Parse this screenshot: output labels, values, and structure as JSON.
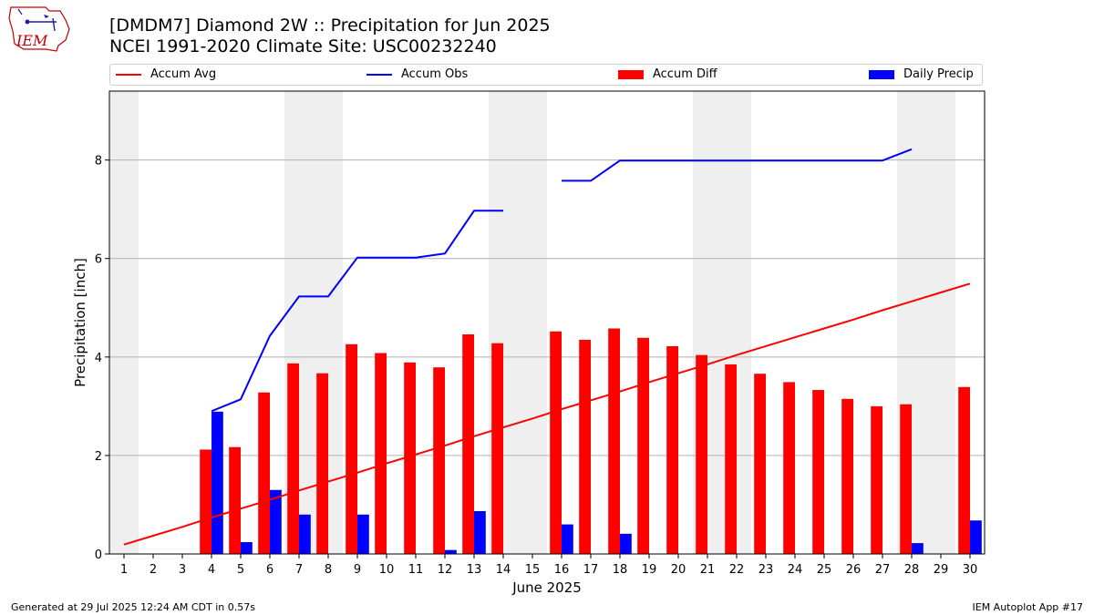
{
  "header": {
    "title_line1": "[DMDM7] Diamond 2W :: Precipitation for Jun 2025",
    "title_line2": "NCEI 1991-2020 Climate Site: USC00232240",
    "logo_text": "IEM"
  },
  "footer": {
    "left": "Generated at 29 Jul 2025 12:24 AM CDT in 0.57s",
    "right": "IEM Autoplot App #17"
  },
  "colors": {
    "avg": "#ff0000",
    "obs": "#0000ff",
    "diff": "#ff0000",
    "daily": "#0000ff",
    "weekend": "#efefef"
  },
  "chart_data": {
    "type": "bar",
    "xlabel": "June 2025",
    "ylabel": "Precipitation [inch]",
    "ylim": [
      0,
      9.4
    ],
    "xlim": [
      0.5,
      30.5
    ],
    "yticks": [
      0,
      2,
      4,
      6,
      8
    ],
    "grid": "y",
    "legend_placement": "top",
    "categories": [
      "1",
      "2",
      "3",
      "4",
      "5",
      "6",
      "7",
      "8",
      "9",
      "10",
      "11",
      "12",
      "13",
      "14",
      "15",
      "16",
      "17",
      "18",
      "19",
      "20",
      "21",
      "22",
      "23",
      "24",
      "25",
      "26",
      "27",
      "28",
      "29",
      "30"
    ],
    "shaded_days": [
      1,
      7,
      8,
      14,
      15,
      21,
      22,
      28,
      29
    ],
    "series": [
      {
        "name": "Accum Avg",
        "kind": "line",
        "values": [
          0.19,
          0.37,
          0.55,
          0.74,
          0.92,
          1.1,
          1.29,
          1.47,
          1.65,
          1.84,
          2.02,
          2.2,
          2.39,
          2.57,
          2.75,
          2.94,
          3.12,
          3.3,
          3.49,
          3.67,
          3.85,
          4.04,
          4.22,
          4.4,
          4.58,
          4.76,
          4.95,
          5.13,
          5.31,
          5.49
        ]
      },
      {
        "name": "Accum Obs",
        "kind": "line",
        "values": [
          null,
          null,
          null,
          2.9,
          3.14,
          4.43,
          5.23,
          5.23,
          6.02,
          6.02,
          6.02,
          6.1,
          6.97,
          6.97,
          null,
          7.58,
          7.58,
          7.99,
          7.99,
          7.99,
          7.99,
          7.99,
          7.99,
          7.99,
          7.99,
          7.99,
          7.99,
          8.22,
          null,
          null
        ]
      },
      {
        "name": "Accum Diff",
        "kind": "bar",
        "values": [
          0,
          0,
          0,
          2.12,
          2.17,
          3.28,
          3.87,
          3.67,
          4.26,
          4.08,
          3.89,
          3.79,
          4.46,
          4.28,
          0,
          4.52,
          4.35,
          4.58,
          4.39,
          4.22,
          4.04,
          3.85,
          3.66,
          3.49,
          3.33,
          3.15,
          3.0,
          3.04,
          0,
          3.39
        ]
      },
      {
        "name": "Daily Precip",
        "kind": "bar",
        "values": [
          0,
          0,
          0,
          2.89,
          0.24,
          1.3,
          0.8,
          0,
          0.8,
          0,
          0,
          0.08,
          0.87,
          0,
          0,
          0.6,
          0,
          0.41,
          0,
          0,
          0,
          0,
          0,
          0,
          0,
          0,
          0,
          0.22,
          0,
          0.68
        ]
      }
    ]
  }
}
